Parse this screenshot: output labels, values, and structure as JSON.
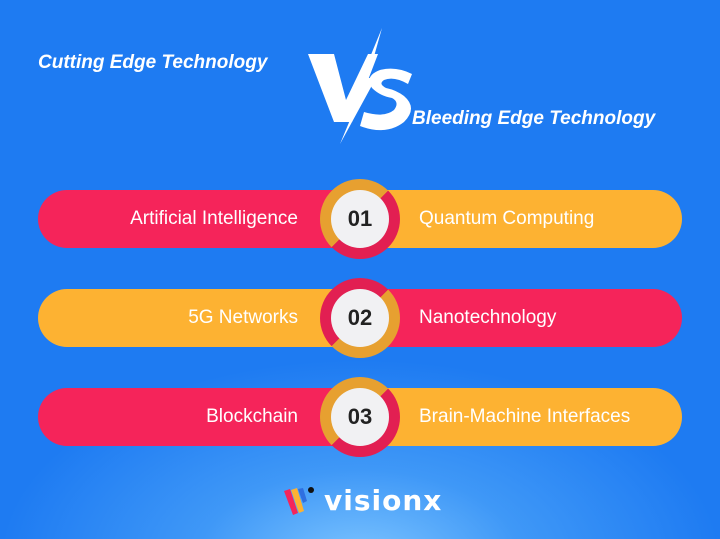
{
  "header": {
    "left_title": "Cutting Edge Technology",
    "vs_label": "VS",
    "right_title": "Bleeding Edge Technology"
  },
  "rows": [
    {
      "number": "01",
      "left": "Artificial Intelligence",
      "right": "Quantum Computing",
      "left_color": "#f5245a",
      "right_color": "#fdb232"
    },
    {
      "number": "02",
      "left": "5G Networks",
      "right": "Nanotechnology",
      "left_color": "#fdb232",
      "right_color": "#f5245a"
    },
    {
      "number": "03",
      "left": "Blockchain",
      "right": "Brain-Machine Interfaces",
      "left_color": "#f5245a",
      "right_color": "#fdb232"
    }
  ],
  "brand": {
    "name": "visionx"
  },
  "colors": {
    "background": "#1e7bf2",
    "pink": "#f5245a",
    "orange": "#fdb232"
  }
}
